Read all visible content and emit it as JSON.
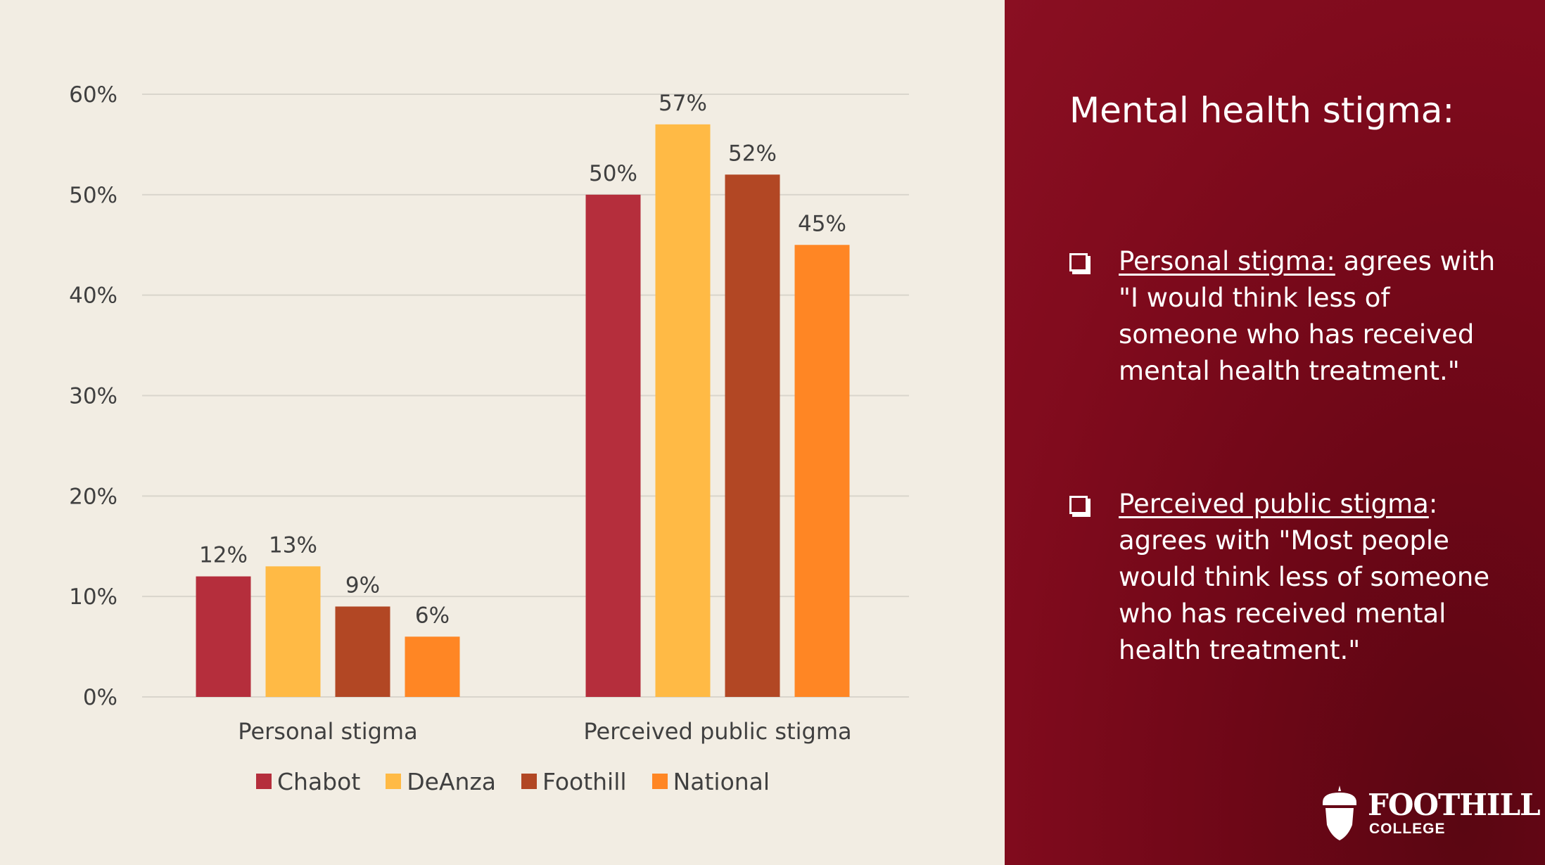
{
  "panel": {
    "title": "Mental health stigma:",
    "bullets": [
      {
        "term": "Personal stigma:",
        "after_term": "",
        "text": " agrees with \"I would think less of someone who has received mental health treatment.\""
      },
      {
        "term": "Perceived public stigma",
        "after_term": ":",
        "text": " agrees with \"Most people would think less of someone who has received mental health treatment.\""
      }
    ],
    "logo": {
      "name": "FOOTHILL",
      "subtitle": "COLLEGE"
    }
  },
  "colors": {
    "background": "#f2ede3",
    "panel": "#800b1d",
    "Chabot": "#b52e3c",
    "DeAnza": "#ffba45",
    "Foothill": "#b24724",
    "National": "#ff8624",
    "grid": "#d9d5cc",
    "text": "#404040"
  },
  "chart_data": {
    "type": "bar",
    "title": "",
    "xlabel": "",
    "ylabel": "",
    "categories": [
      "Personal stigma",
      "Perceived public stigma"
    ],
    "series": [
      {
        "name": "Chabot",
        "values": [
          12,
          50
        ],
        "labels": [
          "12%",
          "50%"
        ]
      },
      {
        "name": "DeAnza",
        "values": [
          13,
          57
        ],
        "labels": [
          "13%",
          "57%"
        ]
      },
      {
        "name": "Foothill",
        "values": [
          9,
          52
        ],
        "labels": [
          "9%",
          "52%"
        ]
      },
      {
        "name": "National",
        "values": [
          6,
          45
        ],
        "labels": [
          "6%",
          "45%"
        ]
      }
    ],
    "ylim": [
      0,
      60
    ],
    "yticks": [
      0,
      10,
      20,
      30,
      40,
      50,
      60
    ],
    "ytick_labels": [
      "0%",
      "10%",
      "20%",
      "30%",
      "40%",
      "50%",
      "60%"
    ],
    "grid": true,
    "legend_position": "bottom"
  }
}
